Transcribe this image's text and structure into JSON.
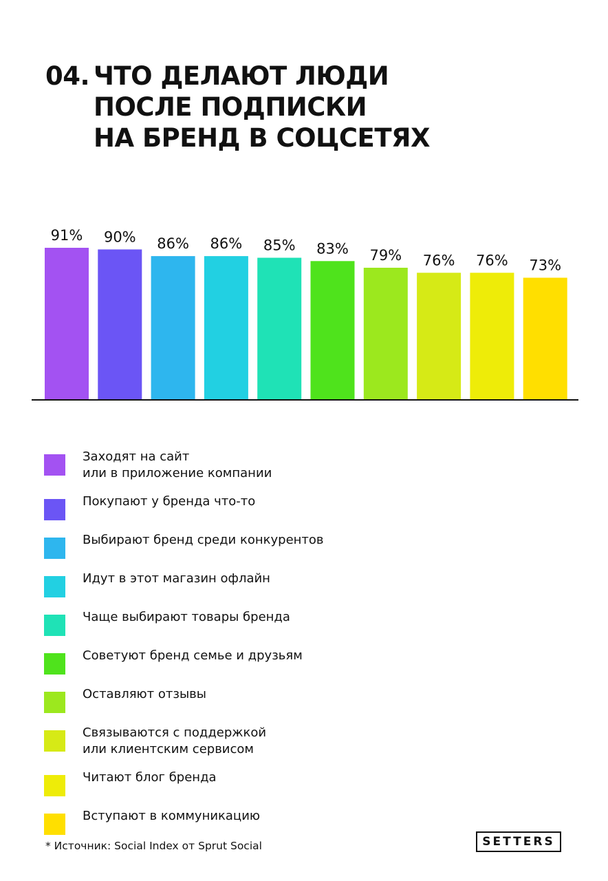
{
  "title": {
    "number": "04.",
    "lines": [
      "ЧТО ДЕЛАЮТ ЛЮДИ",
      "ПОСЛЕ ПОДПИСКИ",
      "НА БРЕНД В СОЦСЕТЯХ"
    ]
  },
  "chart_data": {
    "type": "bar",
    "categories": [
      "Заходят на сайт или в приложение компании",
      "Покупают у бренда что-то",
      "Выбирают бренд среди конкурентов",
      "Идут в этот магазин офлайн",
      "Чаще выбирают товары бренда",
      "Советуют бренд семье и друзьям",
      "Оставляют отзывы",
      "Связываются с поддержкой или клиентским сервисом",
      "Читают блог бренда",
      "Вступают в коммуникацию"
    ],
    "values": [
      91,
      90,
      86,
      86,
      85,
      83,
      79,
      76,
      76,
      73
    ],
    "value_labels": [
      "91%",
      "90%",
      "86%",
      "86%",
      "85%",
      "83%",
      "79%",
      "76%",
      "76%",
      "73%"
    ],
    "colors": [
      "#a352f2",
      "#6b55f5",
      "#2eb6ee",
      "#22d0e2",
      "#1fe2b6",
      "#4fe31c",
      "#9ce81e",
      "#d6ea16",
      "#eeec08",
      "#ffdf00"
    ],
    "title": "",
    "xlabel": "",
    "ylabel": "",
    "ylim": [
      0,
      91
    ],
    "grid": false,
    "legend_position": "bottom"
  },
  "legend": [
    {
      "lines": [
        "Заходят на сайт",
        "или в приложение компании"
      ],
      "color": "#a352f2"
    },
    {
      "lines": [
        "Покупают у бренда что-то"
      ],
      "color": "#6b55f5"
    },
    {
      "lines": [
        "Выбирают бренд среди конкурентов"
      ],
      "color": "#2eb6ee"
    },
    {
      "lines": [
        "Идут в этот магазин офлайн"
      ],
      "color": "#22d0e2"
    },
    {
      "lines": [
        "Чаще выбирают товары бренда"
      ],
      "color": "#1fe2b6"
    },
    {
      "lines": [
        "Советуют бренд семье и друзьям"
      ],
      "color": "#4fe31c"
    },
    {
      "lines": [
        "Оставляют отзывы"
      ],
      "color": "#9ce81e"
    },
    {
      "lines": [
        "Связываются с поддержкой",
        "или клиентским сервисом"
      ],
      "color": "#d6ea16"
    },
    {
      "lines": [
        "Читают блог бренда"
      ],
      "color": "#eeec08"
    },
    {
      "lines": [
        "Вступают в коммуникацию"
      ],
      "color": "#ffdf00"
    }
  ],
  "source": "* Источник: Social Index от Sprut Social",
  "logo": "SETTERS"
}
